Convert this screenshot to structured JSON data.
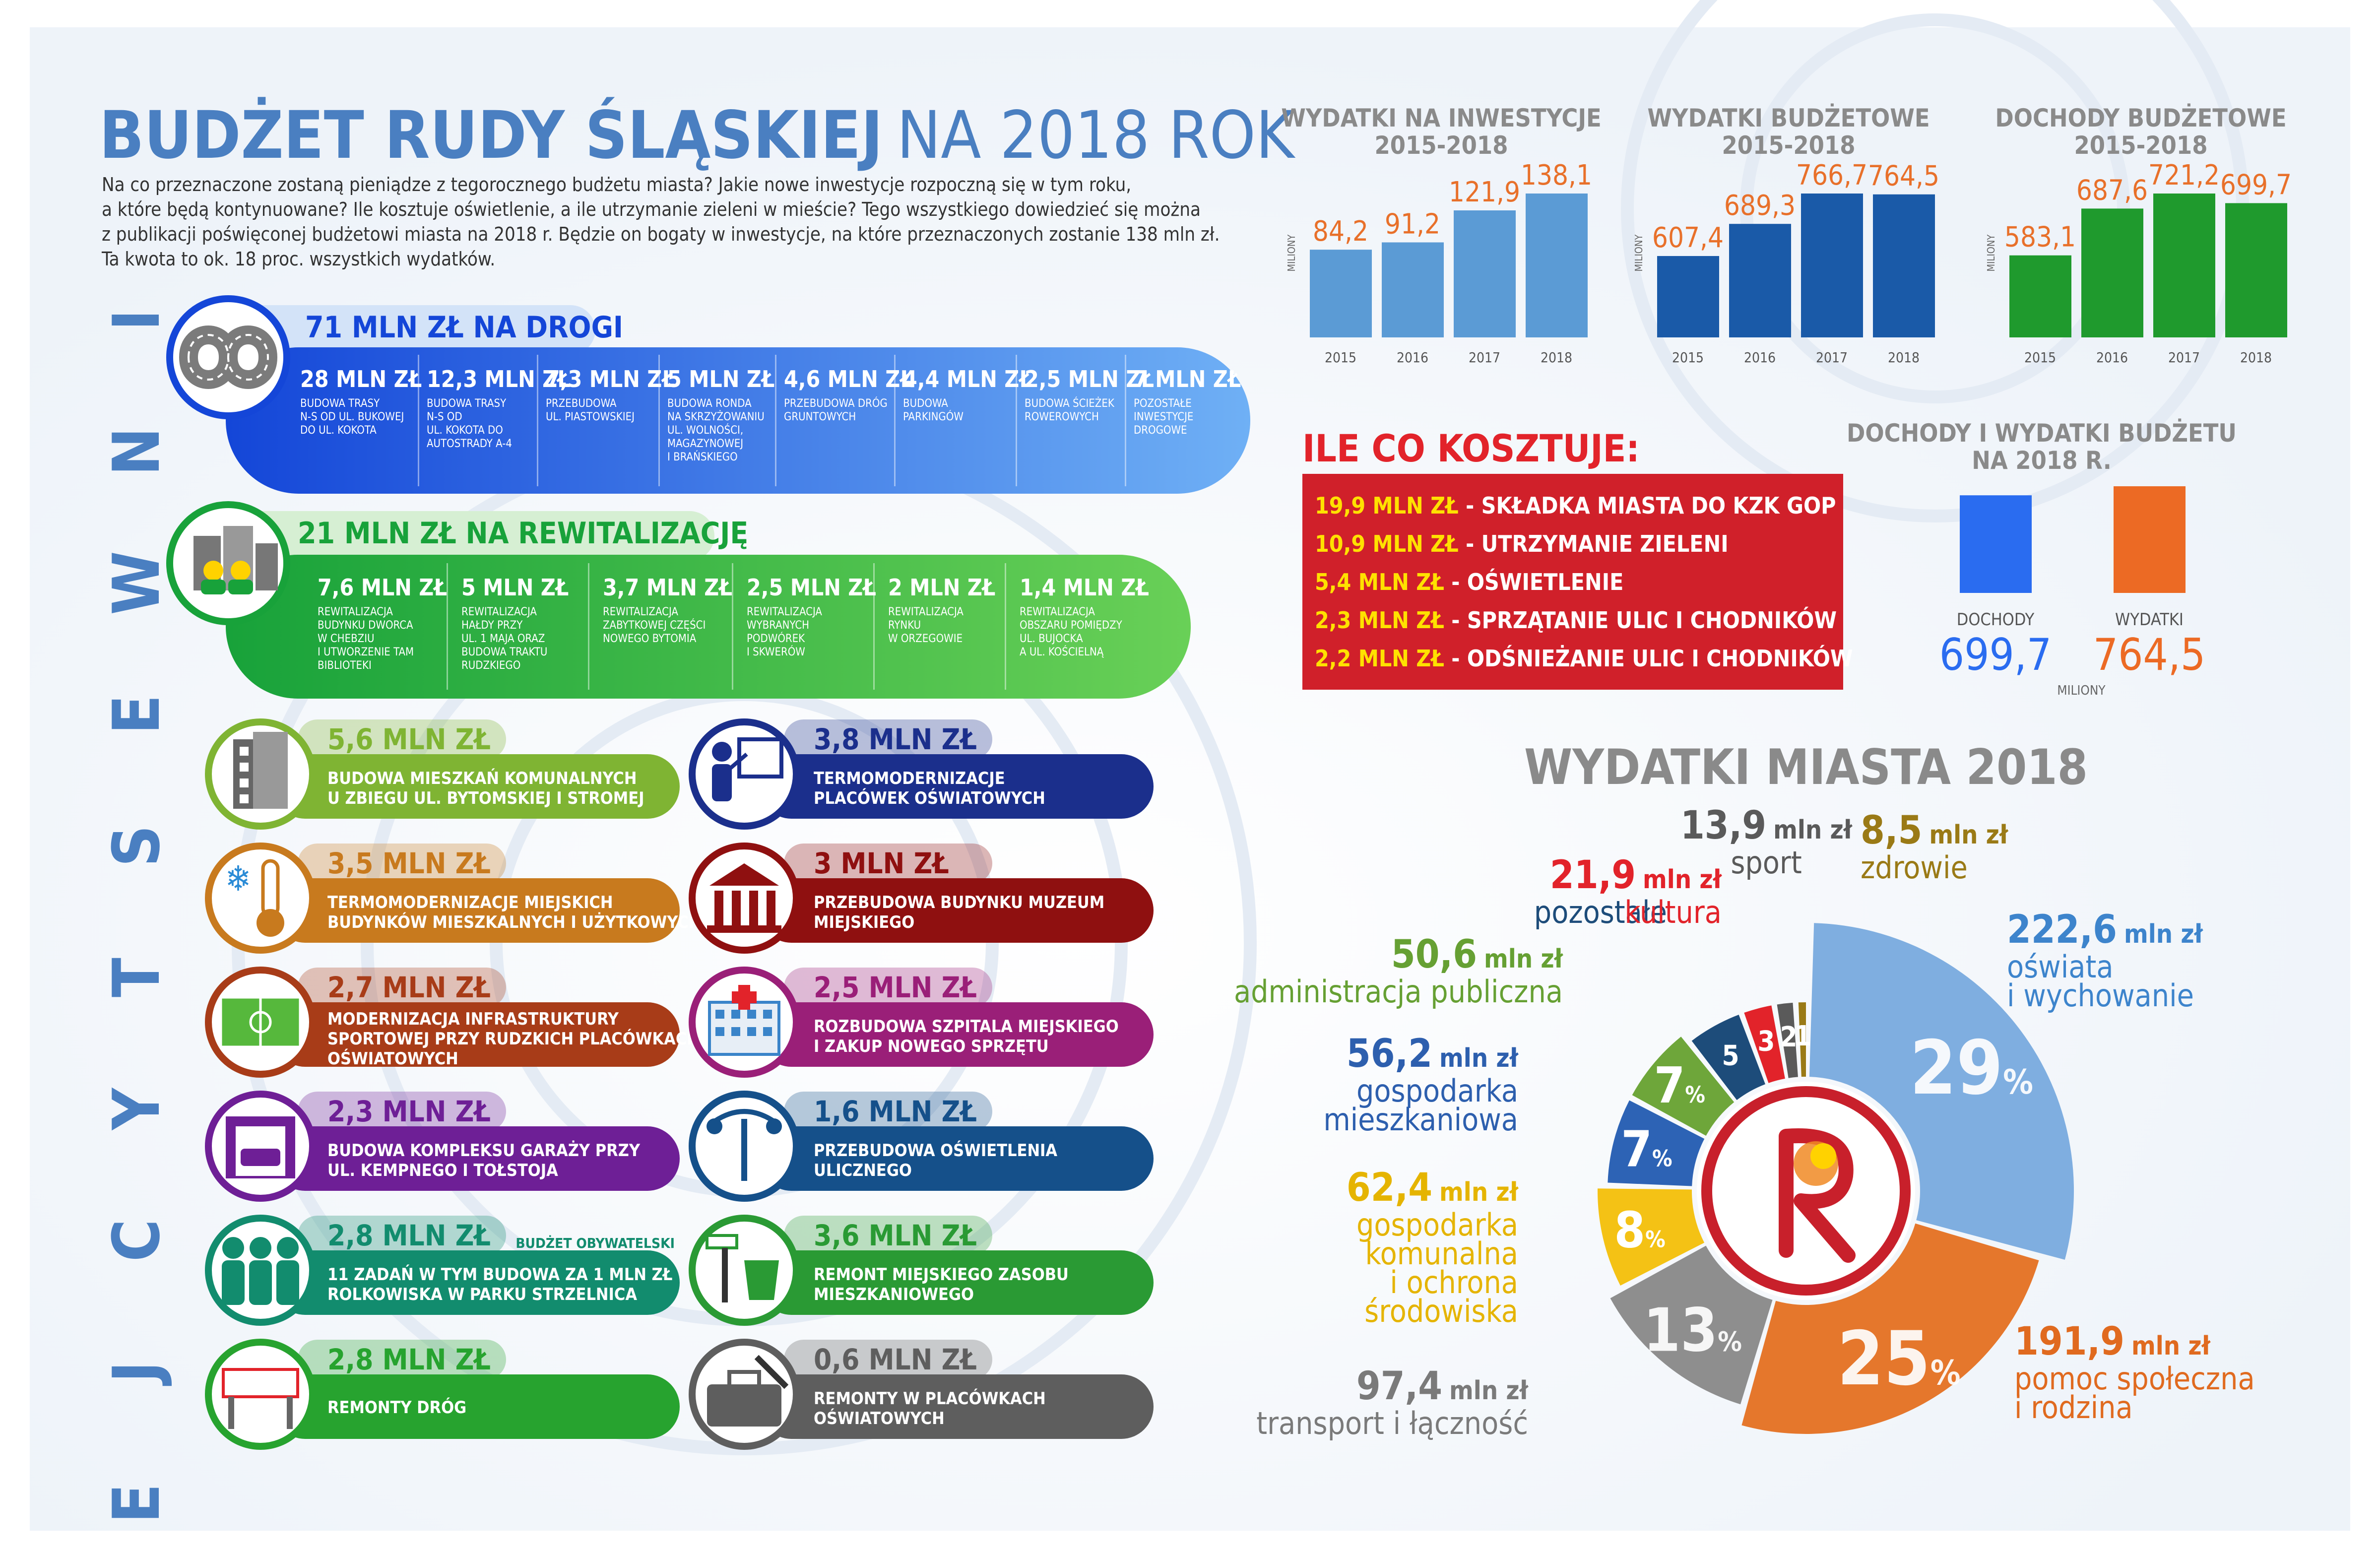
{
  "header": {
    "title_bold": "BUDŻET RUDY ŚLĄSKIEJ",
    "title_light": "NA 2018 ROK",
    "intro_lines": [
      "Na co przeznaczone zostaną pieniądze z tegorocznego budżetu miasta? Jakie nowe inwestycje rozpoczną się w tym roku,",
      "a które będą kontynuowane? Ile kosztuje oświetlenie, a ile utrzymanie zieleni w mieście? Tego wszystkiego dowiedzieć się można",
      "z publikacji poświęconej budżetowi miasta na 2018 r. Będzie on bogaty w inwestycje, na które przeznaczonych zostanie 138 mln zł.",
      "Ta kwota to ok. 18 proc. wszystkich wydatków."
    ]
  },
  "vertical_label": [
    "I",
    "N",
    "W",
    "E",
    "S",
    "T",
    "Y",
    "C",
    "J",
    "E"
  ],
  "roads": {
    "title": "71 MLN ZŁ NA DROGI",
    "items": [
      {
        "amount": "28 MLN ZŁ",
        "desc": [
          "BUDOWA TRASY",
          "N-S OD UL. BUKOWEJ",
          "DO UL. KOKOTA"
        ]
      },
      {
        "amount": "12,3 MLN ZŁ",
        "desc": [
          "BUDOWA TRASY",
          "N-S OD",
          "UL. KOKOTA DO",
          "AUTOSTRADY A-4"
        ]
      },
      {
        "amount": "7,3 MLN ZŁ",
        "desc": [
          "PRZEBUDOWA",
          "UL. PIASTOWSKIEJ"
        ]
      },
      {
        "amount": "5 MLN ZŁ",
        "desc": [
          "BUDOWA RONDA",
          "NA SKRZYŻOWANIU",
          "UL. WOLNOŚCI,",
          "MAGAZYNOWEJ",
          "I BRAŃSKIEGO"
        ]
      },
      {
        "amount": "4,6 MLN ZŁ",
        "desc": [
          "PRZEBUDOWA DRÓG",
          "GRUNTOWYCH"
        ]
      },
      {
        "amount": "4,4 MLN ZŁ",
        "desc": [
          "BUDOWA",
          "PARKINGÓW"
        ]
      },
      {
        "amount": "2,5 MLN ZŁ",
        "desc": [
          "BUDOWA ŚCIEŻEK",
          "ROWEROWYCH"
        ]
      },
      {
        "amount": "7 MLN ZŁ",
        "desc": [
          "POZOSTAŁE",
          "INWESTYCJE",
          "DROGOWE"
        ]
      }
    ]
  },
  "revit": {
    "title": "21 MLN ZŁ NA REWITALIZACJĘ",
    "items": [
      {
        "amount": "7,6 MLN ZŁ",
        "desc": [
          "REWITALIZACJA",
          "BUDYNKU DWORCA",
          "W CHEBZIU",
          "I UTWORZENIE TAM",
          "BIBLIOTEKI"
        ]
      },
      {
        "amount": "5 MLN ZŁ",
        "desc": [
          "REWITALIZACJA",
          "HAŁDY PRZY",
          "UL. 1 MAJA ORAZ",
          "BUDOWA TRAKTU",
          "RUDZKIEGO"
        ]
      },
      {
        "amount": "3,7 MLN ZŁ",
        "desc": [
          "REWITALIZACJA",
          "ZABYTKOWEJ CZĘŚCI",
          "NOWEGO BYTOMIA"
        ]
      },
      {
        "amount": "2,5 MLN ZŁ",
        "desc": [
          "REWITALIZACJA",
          "WYBRANYCH",
          "PODWÓREK",
          "I SKWERÓW"
        ]
      },
      {
        "amount": "2 MLN ZŁ",
        "desc": [
          "REWITALIZACJA",
          "RYNKU",
          "W ORZEGOWIE"
        ]
      },
      {
        "amount": "1,4 MLN ZŁ",
        "desc": [
          "REWITALIZACJA",
          "OBSZARU POMIĘDZY",
          "UL. BUJOCKA",
          "A UL. KOŚCIELNĄ"
        ]
      }
    ]
  },
  "projects": [
    {
      "amount": "5,6 MLN ZŁ",
      "desc": [
        "BUDOWA MIESZKAŃ KOMUNALNYCH",
        "U ZBIEGU UL. BYTOMSKIEJ I STROMEJ"
      ],
      "color": "#7fb433",
      "icon": "building-icon",
      "note": ""
    },
    {
      "amount": "3,8 MLN ZŁ",
      "desc": [
        "TERMOMODERNIZACJE",
        "PLACÓWEK OŚWIATOWYCH"
      ],
      "color": "#1b2f8c",
      "icon": "teacher-board-icon",
      "note": ""
    },
    {
      "amount": "3,5 MLN ZŁ",
      "desc": [
        "TERMOMODERNIZACJE MIEJSKICH",
        "BUDYNKÓW MIESZKALNYCH I UŻYTKOWYCH"
      ],
      "color": "#c87a1e",
      "icon": "thermometer-icon",
      "note": ""
    },
    {
      "amount": "3 MLN ZŁ",
      "desc": [
        "PRZEBUDOWA BUDYNKU MUZEUM",
        "MIEJSKIEGO"
      ],
      "color": "#8f1010",
      "icon": "museum-icon",
      "note": ""
    },
    {
      "amount": "2,7 MLN ZŁ",
      "desc": [
        "MODERNIZACJA INFRASTRUKTURY",
        "SPORTOWEJ PRZY RUDZKICH PLACÓWKACH",
        "OŚWIATOWYCH"
      ],
      "color": "#a83c18",
      "icon": "football-field-icon",
      "note": ""
    },
    {
      "amount": "2,5 MLN ZŁ",
      "desc": [
        "ROZBUDOWA SZPITALA MIEJSKIEGO",
        "I ZAKUP NOWEGO SPRZĘTU"
      ],
      "color": "#9a1f78",
      "icon": "hospital-icon",
      "note": ""
    },
    {
      "amount": "2,3 MLN ZŁ",
      "desc": [
        "BUDOWA KOMPLEKSU GARAŻY PRZY",
        "UL. KEMPNEGO I TOŁSTOJA"
      ],
      "color": "#6e1f96",
      "icon": "garage-icon",
      "note": ""
    },
    {
      "amount": "1,6 MLN ZŁ",
      "desc": [
        "PRZEBUDOWA OŚWIETLENIA",
        "ULICZNEGO"
      ],
      "color": "#15508a",
      "icon": "street-lamp-icon",
      "note": ""
    },
    {
      "amount": "2,8 MLN ZŁ",
      "desc": [
        "11 ZADAŃ W TYM BUDOWA ZA 1 MLN ZŁ",
        "ROLKOWISKA W PARKU STRZELNICA"
      ],
      "color": "#128c6e",
      "icon": "people-icon",
      "note": "BUDŻET OBYWATELSKI"
    },
    {
      "amount": "3,6 MLN ZŁ",
      "desc": [
        "REMONT MIEJSKIEGO ZASOBU",
        "MIESZKANIOWEGO"
      ],
      "color": "#2a9a34",
      "icon": "paint-bucket-icon",
      "note": ""
    },
    {
      "amount": "2,8 MLN ZŁ",
      "desc": [
        "REMONTY DRÓG"
      ],
      "color": "#27a32f",
      "icon": "road-barrier-icon",
      "note": ""
    },
    {
      "amount": "0,6 MLN ZŁ",
      "desc": [
        "REMONTY W PLACÓWKACH",
        "OŚWIATOWYCH"
      ],
      "color": "#5e5e5e",
      "icon": "toolbox-icon",
      "note": ""
    }
  ],
  "chart_data": [
    {
      "type": "bar",
      "title": "WYDATKI NA INWESTYCJE\n2015-2018",
      "ylabel": "MILIONY",
      "categories": [
        "2015",
        "2016",
        "2017",
        "2018"
      ],
      "values": [
        84.2,
        91.2,
        121.9,
        138.1
      ],
      "labels": [
        "84,2",
        "91,2",
        "121,9",
        "138,1"
      ],
      "color": "#5b9bd5",
      "label_color": "#e8702a"
    },
    {
      "type": "bar",
      "title": "WYDATKI BUDŻETOWE\n2015-2018",
      "ylabel": "MILIONY",
      "categories": [
        "2015",
        "2016",
        "2017",
        "2018"
      ],
      "values": [
        607.4,
        689.3,
        766.7,
        764.5
      ],
      "labels": [
        "607,4",
        "689,3",
        "766,7",
        "764,5"
      ],
      "color": "#1a5aa8",
      "label_color": "#e8702a"
    },
    {
      "type": "bar",
      "title": "DOCHODY BUDŻETOWE\n2015-2018",
      "ylabel": "MILIONY",
      "categories": [
        "2015",
        "2016",
        "2017",
        "2018"
      ],
      "values": [
        583.1,
        687.6,
        721.2,
        699.7
      ],
      "labels": [
        "583,1",
        "687,6",
        "721,2",
        "699,7"
      ],
      "color": "#1f9a2d",
      "label_color": "#e8702a"
    },
    {
      "type": "bar",
      "title": "DOCHODY I WYDATKI BUDŻETU\nNA 2018 R.",
      "ylabel": "MILIONY",
      "categories": [
        "DOCHODY",
        "WYDATKI"
      ],
      "values": [
        699.7,
        764.5
      ],
      "labels": [
        "699,7",
        "764,5"
      ],
      "colors": [
        "#2a6cf0",
        "#ec6a24"
      ]
    },
    {
      "type": "pie",
      "title": "WYDATKI MIASTA 2018",
      "slices": [
        {
          "pct": "29",
          "amount": "222,6",
          "unit": "mln zł",
          "label": [
            "oświata",
            "i wychowanie"
          ],
          "value": 222.6,
          "color": "#7faee0",
          "label_color": "#3d84cc"
        },
        {
          "pct": "25",
          "amount": "191,9",
          "unit": "mln zł",
          "label": [
            "pomoc społeczna",
            "i rodzina"
          ],
          "value": 191.9,
          "color": "#e5772c",
          "label_color": "#e06a1f"
        },
        {
          "pct": "13",
          "amount": "97,4",
          "unit": "mln zł",
          "label": [
            "transport i łączność"
          ],
          "value": 97.4,
          "color": "#8e8e8e",
          "label_color": "#7a7a7a"
        },
        {
          "pct": "8",
          "amount": "62,4",
          "unit": "mln zł",
          "label": [
            "gospodarka",
            "komunalna",
            "i ochrona",
            "środowiska"
          ],
          "value": 62.4,
          "color": "#f4c215",
          "label_color": "#e5b400"
        },
        {
          "pct": "7",
          "amount": "56,2",
          "unit": "mln zł",
          "label": [
            "gospodarka",
            "mieszkaniowa"
          ],
          "value": 56.2,
          "color": "#2d63b5",
          "label_color": "#2d5fae"
        },
        {
          "pct": "7",
          "amount": "50,6",
          "unit": "mln zł",
          "label": [
            "administracja publiczna"
          ],
          "value": 50.6,
          "color": "#6ea63a",
          "label_color": "#66a033"
        },
        {
          "pct": "5",
          "amount": "",
          "unit": "",
          "label": [
            "pozostałe"
          ],
          "value": 38.5,
          "color": "#1d4c7a",
          "label_color": "#1d4c7a"
        },
        {
          "pct": "3",
          "amount": "21,9",
          "unit": "mln zł",
          "label": [
            "kultura"
          ],
          "value": 21.9,
          "color": "#e2232a",
          "label_color": "#e2232a"
        },
        {
          "pct": "2",
          "amount": "13,9",
          "unit": "mln zł",
          "label": [
            "sport"
          ],
          "value": 13.9,
          "color": "#5a5a5a",
          "label_color": "#5a5a5a"
        },
        {
          "pct": "1",
          "amount": "8,5",
          "unit": "mln zł",
          "label": [
            "zdrowie"
          ],
          "value": 8.5,
          "color": "#9a7a16",
          "label_color": "#9a7a16"
        }
      ]
    }
  ],
  "costs": {
    "title": "ILE CO KOSZTUJE:",
    "items": [
      {
        "amount": "19,9 MLN ZŁ",
        "text": " - SKŁADKA MIASTA DO KZK GOP"
      },
      {
        "amount": "10,9 MLN ZŁ",
        "text": " - UTRZYMANIE ZIELENI"
      },
      {
        "amount": "5,4 MLN ZŁ",
        "text": " - OŚWIETLENIE"
      },
      {
        "amount": "2,3 MLN ZŁ",
        "text": " - SPRZĄTANIE ULIC I CHODNIKÓW"
      },
      {
        "amount": "2,2 MLN ZŁ",
        "text": " - ODŚNIEŻANIE ULIC I CHODNIKÓW"
      }
    ]
  },
  "income_spend_unit": "MILIONY",
  "colors": {
    "blue": "#5b9bd5",
    "red": "#d0202a",
    "yellow": "#ffe100",
    "gray": "#808080"
  }
}
